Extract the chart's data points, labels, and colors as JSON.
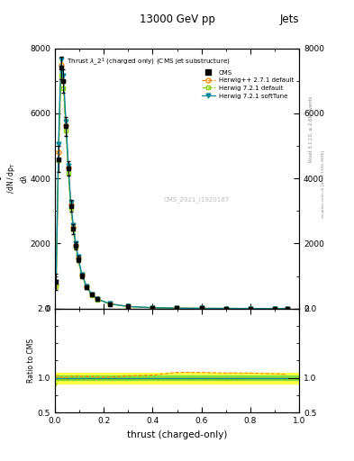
{
  "title": "13000 GeV pp",
  "title_right": "Jets",
  "plot_title": "Thrust $\\lambda\\_2^1$ (charged only) (CMS jet substructure)",
  "xlabel": "thrust (charged-only)",
  "watermark": "CMS_2021_I1920187",
  "right_label": "Rivet 3.1.10, ≥ 2.6M events",
  "arxiv_label": "mcplots.cern.ch [arXiv:1306.3436]",
  "cms_label": "CMS",
  "herwig1_label": "Herwig++ 2.7.1 default",
  "herwig2_label": "Herwig 7.2.1 default",
  "herwig3_label": "Herwig 7.2.1 softTune",
  "xlim": [
    0.0,
    1.0
  ],
  "ylim_main": [
    0,
    8000
  ],
  "ylim_ratio": [
    0.5,
    2.0
  ],
  "background_color": "#ffffff",
  "cms_color": "#000000",
  "herwig1_color": "#ff8800",
  "herwig2_color": "#88cc00",
  "herwig3_color": "#008899",
  "ratio_band1_color": "#ffff44",
  "ratio_band2_color": "#88dd44",
  "thrust_x": [
    0.005,
    0.015,
    0.025,
    0.035,
    0.045,
    0.055,
    0.065,
    0.075,
    0.085,
    0.095,
    0.11,
    0.13,
    0.15,
    0.175,
    0.225,
    0.3,
    0.4,
    0.5,
    0.6,
    0.7,
    0.8,
    0.9,
    0.95
  ],
  "cms_y": [
    820,
    4600,
    7400,
    7000,
    5600,
    4300,
    3150,
    2450,
    1930,
    1520,
    1010,
    660,
    425,
    283,
    142,
    61,
    25,
    12,
    6,
    3,
    1.5,
    0.8,
    0.4
  ],
  "cms_yerr": [
    250,
    400,
    350,
    350,
    280,
    220,
    180,
    150,
    120,
    95,
    65,
    48,
    32,
    22,
    13,
    7,
    3.5,
    1.8,
    1,
    0.5,
    0.25,
    0.12,
    0.08
  ],
  "h1_y": [
    750,
    4800,
    7500,
    7000,
    5650,
    4350,
    3200,
    2500,
    1960,
    1560,
    1030,
    675,
    435,
    287,
    144,
    63,
    26,
    13,
    6.5,
    3.2,
    1.6,
    0.85,
    0.42
  ],
  "h2_y": [
    680,
    4550,
    7150,
    6780,
    5470,
    4180,
    3080,
    2420,
    1890,
    1490,
    995,
    648,
    417,
    277,
    139,
    60,
    24.5,
    11.8,
    5.9,
    2.9,
    1.48,
    0.79,
    0.39
  ],
  "h3_y": [
    830,
    5050,
    7650,
    7150,
    5750,
    4390,
    3270,
    2570,
    2010,
    1590,
    1055,
    685,
    443,
    292,
    146,
    63.5,
    26.5,
    13.2,
    6.6,
    3.25,
    1.62,
    0.86,
    0.43
  ],
  "ratio_h1_y": [
    1.0,
    1.04,
    1.01,
    1.0,
    1.01,
    1.01,
    1.02,
    1.02,
    1.02,
    1.03,
    1.02,
    1.02,
    1.02,
    1.01,
    1.01,
    1.03,
    1.04,
    1.08,
    1.08,
    1.07,
    1.07,
    1.06,
    1.05
  ],
  "ratio_h2_y": [
    0.88,
    0.99,
    0.97,
    0.97,
    0.98,
    0.97,
    0.98,
    0.99,
    0.98,
    0.98,
    0.985,
    0.982,
    0.981,
    0.979,
    0.979,
    0.984,
    0.98,
    0.983,
    0.983,
    0.967,
    0.987,
    0.988,
    0.975
  ],
  "ratio_h3_y": [
    1.0,
    1.0,
    1.0,
    1.0,
    1.0,
    1.0,
    1.0,
    1.0,
    1.0,
    1.0,
    1.0,
    1.0,
    1.0,
    1.0,
    1.0,
    1.0,
    1.0,
    1.0,
    1.0,
    1.0,
    1.0,
    1.0,
    1.0
  ],
  "ratio_band_inner_lo": 0.97,
  "ratio_band_inner_hi": 1.03,
  "ratio_band_outer_lo": 0.92,
  "ratio_band_outer_hi": 1.08
}
